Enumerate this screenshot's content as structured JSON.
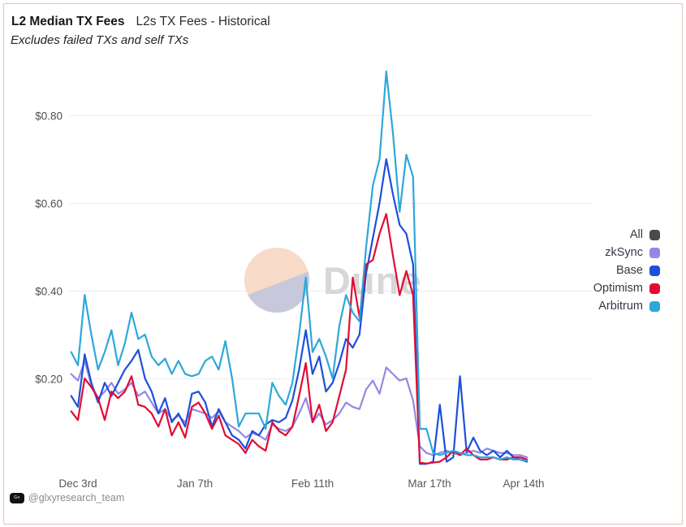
{
  "header": {
    "title": "L2 Median TX Fees",
    "subtitle_inline": "L2s TX Fees - Historical",
    "note": "Excludes failed TXs and self TXs"
  },
  "watermark": {
    "text": "Dune",
    "pie_top_color": "#f8dac9",
    "pie_bottom_color": "#c7c8db"
  },
  "footer": {
    "handle": "@glxyresearch_team"
  },
  "colors": {
    "card_border": "#dcc4b8",
    "gridline": "#ececec",
    "axis_text": "#4c4f57",
    "all": "#4a4a4a",
    "zksync": "#9487e5",
    "base": "#1d4fd9",
    "optimism": "#e20b34",
    "arbitrum": "#2ea7da"
  },
  "legend": {
    "position": "right",
    "items": [
      {
        "label": "All",
        "color": "#4a4a4a"
      },
      {
        "label": "zkSync",
        "color": "#9487e5"
      },
      {
        "label": "Base",
        "color": "#1d4fd9"
      },
      {
        "label": "Optimism",
        "color": "#e20b34"
      },
      {
        "label": "Arbitrum",
        "color": "#2ea7da"
      }
    ]
  },
  "chart_data": {
    "type": "line",
    "title": "L2 Median TX Fees",
    "subtitle": "L2s TX Fees - Historical",
    "note": "Excludes failed TXs and self TXs",
    "unit": "USD",
    "grid": "horizontal",
    "legend_position": "right",
    "ylim": [
      0,
      0.92
    ],
    "y_ticks": [
      "$0.80",
      "$0.60",
      "$0.40",
      "$0.20"
    ],
    "y_tick_values": [
      0.8,
      0.6,
      0.4,
      0.2
    ],
    "x_ticks": [
      {
        "label": "Dec 3rd",
        "day": 2
      },
      {
        "label": "Jan 7th",
        "day": 37
      },
      {
        "label": "Feb 11th",
        "day": 72
      },
      {
        "label": "Mar 17th",
        "day": 107
      },
      {
        "label": "Apr 14th",
        "day": 135
      }
    ],
    "x_day0": "Dec 1",
    "legend_only_series": [
      "All"
    ],
    "days": [
      0,
      2,
      4,
      6,
      8,
      10,
      12,
      14,
      16,
      18,
      20,
      22,
      24,
      26,
      28,
      30,
      32,
      34,
      36,
      38,
      40,
      42,
      44,
      46,
      48,
      50,
      52,
      54,
      56,
      58,
      60,
      62,
      64,
      66,
      68,
      70,
      72,
      74,
      76,
      78,
      80,
      82,
      84,
      86,
      88,
      90,
      92,
      94,
      96,
      98,
      100,
      102,
      104,
      106,
      108,
      110,
      112,
      114,
      116,
      118,
      120,
      122,
      124,
      126,
      128,
      130,
      132,
      134,
      136
    ],
    "series": [
      {
        "name": "zkSync",
        "color": "#9487e5",
        "values": [
          0.21,
          0.195,
          0.24,
          0.185,
          0.155,
          0.17,
          0.19,
          0.165,
          0.175,
          0.19,
          0.16,
          0.17,
          0.145,
          0.12,
          0.13,
          0.105,
          0.115,
          0.1,
          0.13,
          0.125,
          0.12,
          0.11,
          0.125,
          0.1,
          0.09,
          0.08,
          0.065,
          0.075,
          0.07,
          0.06,
          0.095,
          0.085,
          0.08,
          0.09,
          0.12,
          0.155,
          0.1,
          0.12,
          0.095,
          0.105,
          0.12,
          0.145,
          0.135,
          0.13,
          0.175,
          0.195,
          0.165,
          0.225,
          0.21,
          0.195,
          0.2,
          0.15,
          0.045,
          0.03,
          0.025,
          0.03,
          0.035,
          0.03,
          0.025,
          0.03,
          0.035,
          0.03,
          0.04,
          0.035,
          0.03,
          0.03,
          0.025,
          0.025,
          0.02
        ]
      },
      {
        "name": "Base",
        "color": "#1d4fd9",
        "values": [
          0.16,
          0.135,
          0.255,
          0.19,
          0.145,
          0.19,
          0.16,
          0.19,
          0.22,
          0.24,
          0.265,
          0.2,
          0.17,
          0.12,
          0.155,
          0.1,
          0.12,
          0.09,
          0.165,
          0.17,
          0.145,
          0.09,
          0.13,
          0.1,
          0.07,
          0.06,
          0.04,
          0.08,
          0.07,
          0.095,
          0.105,
          0.1,
          0.11,
          0.15,
          0.22,
          0.31,
          0.21,
          0.25,
          0.17,
          0.19,
          0.235,
          0.29,
          0.27,
          0.3,
          0.44,
          0.52,
          0.6,
          0.7,
          0.62,
          0.55,
          0.53,
          0.46,
          0.005,
          0.005,
          0.01,
          0.14,
          0.01,
          0.02,
          0.205,
          0.032,
          0.065,
          0.035,
          0.025,
          0.035,
          0.02,
          0.035,
          0.02,
          0.015,
          0.01
        ]
      },
      {
        "name": "Optimism",
        "color": "#e20b34",
        "values": [
          0.125,
          0.105,
          0.2,
          0.18,
          0.155,
          0.105,
          0.17,
          0.155,
          0.17,
          0.205,
          0.14,
          0.135,
          0.12,
          0.09,
          0.13,
          0.07,
          0.1,
          0.065,
          0.135,
          0.145,
          0.12,
          0.085,
          0.115,
          0.07,
          0.06,
          0.05,
          0.03,
          0.06,
          0.045,
          0.035,
          0.1,
          0.08,
          0.07,
          0.09,
          0.16,
          0.235,
          0.1,
          0.14,
          0.08,
          0.1,
          0.16,
          0.22,
          0.43,
          0.34,
          0.46,
          0.47,
          0.53,
          0.575,
          0.48,
          0.39,
          0.445,
          0.39,
          0.008,
          0.006,
          0.008,
          0.01,
          0.02,
          0.035,
          0.025,
          0.04,
          0.025,
          0.015,
          0.015,
          0.02,
          0.015,
          0.015,
          0.02,
          0.02,
          0.015
        ]
      },
      {
        "name": "Arbitrum",
        "color": "#2ea7da",
        "values": [
          0.26,
          0.23,
          0.39,
          0.3,
          0.22,
          0.26,
          0.31,
          0.23,
          0.28,
          0.35,
          0.29,
          0.3,
          0.25,
          0.23,
          0.245,
          0.21,
          0.24,
          0.21,
          0.205,
          0.21,
          0.24,
          0.25,
          0.22,
          0.285,
          0.2,
          0.09,
          0.12,
          0.12,
          0.12,
          0.085,
          0.19,
          0.16,
          0.14,
          0.19,
          0.3,
          0.43,
          0.26,
          0.29,
          0.25,
          0.2,
          0.32,
          0.39,
          0.35,
          0.33,
          0.5,
          0.64,
          0.7,
          0.9,
          0.76,
          0.58,
          0.71,
          0.66,
          0.085,
          0.085,
          0.03,
          0.025,
          0.03,
          0.035,
          0.03,
          0.025,
          0.025,
          0.02,
          0.02,
          0.02,
          0.015,
          0.02,
          0.015,
          0.015,
          0.012
        ]
      }
    ]
  }
}
